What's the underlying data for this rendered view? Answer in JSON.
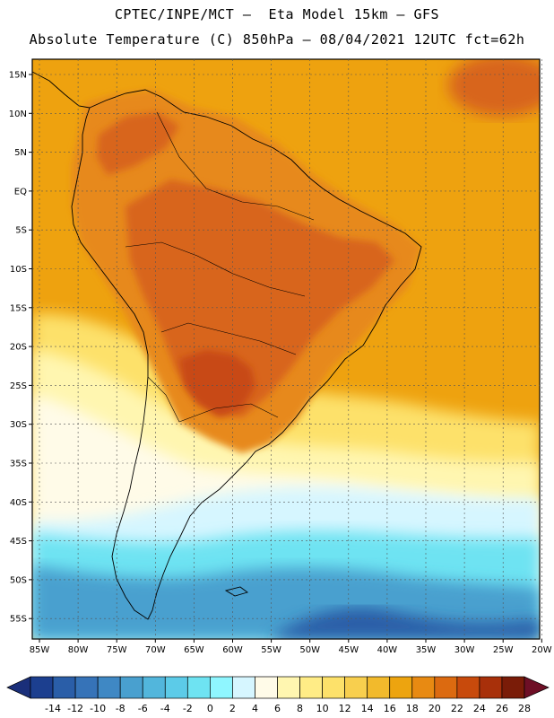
{
  "header": {
    "line1": "CPTEC/INPE/MCT –  Eta Model 15km – GFS",
    "line2": "Absolute Temperature (C) 850hPa – 08/04/2021 12UTC fct=62h"
  },
  "axes": {
    "lat_labels": [
      "15N",
      "10N",
      "5N",
      "EQ",
      "5S",
      "10S",
      "15S",
      "20S",
      "25S",
      "30S",
      "35S",
      "40S",
      "45S",
      "50S",
      "55S"
    ],
    "lon_labels": [
      "85W",
      "80W",
      "75W",
      "70W",
      "65W",
      "60W",
      "55W",
      "50W",
      "45W",
      "40W",
      "35W",
      "30W",
      "25W",
      "20W"
    ]
  },
  "colorbar": {
    "labels": [
      "-14",
      "-12",
      "-10",
      "-8",
      "-6",
      "-4",
      "-2",
      "0",
      "2",
      "4",
      "6",
      "8",
      "10",
      "12",
      "14",
      "16",
      "18",
      "20",
      "22",
      "24",
      "26",
      "28"
    ],
    "colors": [
      "#1c3f8f",
      "#2a5ea8",
      "#3673b8",
      "#3f88c4",
      "#49a0cf",
      "#52b6dc",
      "#5ccbe8",
      "#6ee3f2",
      "#8ff6ff",
      "#d6f6ff",
      "#fffbe8",
      "#fff6b0",
      "#ffec86",
      "#fde16a",
      "#f8cf4e",
      "#f2ba2c",
      "#eda40f",
      "#e88a12",
      "#dc6a10",
      "#c84a0c",
      "#a8300a",
      "#7a1c08"
    ],
    "low_cap_color": "#1a2f7a",
    "high_cap_color": "#6e0f26"
  },
  "map_colors": {
    "ocean_warm": "#eea20f",
    "land_warm": "#e7891b",
    "land_hot": "#d8651a",
    "land_hottest": "#c84a12",
    "mid_yellow": "#fde16a",
    "pale_yellow": "#fff6b0",
    "cream": "#fffbe8",
    "light_cyan": "#d6f6ff",
    "cyan": "#6ee3f2",
    "sky_blue": "#49a0cf",
    "deep_blue": "#2a5ea8"
  }
}
